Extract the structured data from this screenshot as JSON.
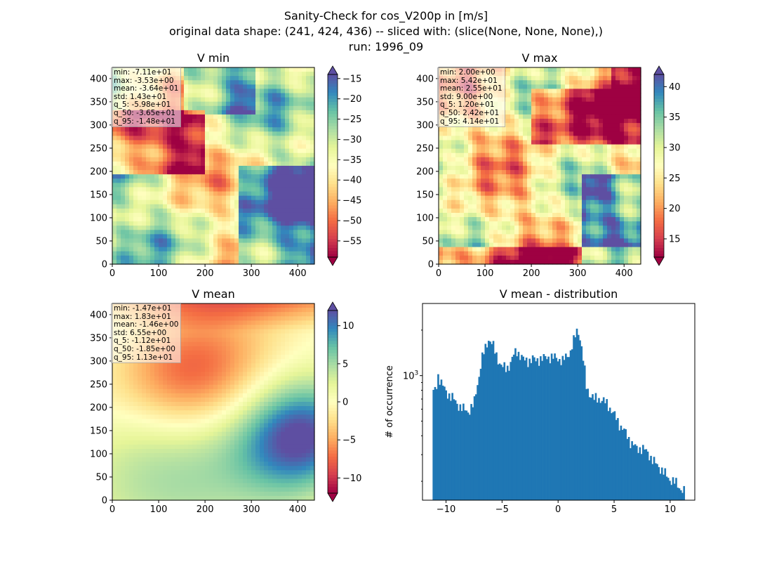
{
  "suptitle": {
    "line1": "Sanity-Check for cos_V200p in [m/s]",
    "line2": "original data shape: (241, 424, 436) -- sliced with: (slice(None, None, None),)",
    "line3": "run: 1996_09"
  },
  "chart_data": [
    {
      "type": "heatmap",
      "title": "V min",
      "colormap": "Spectral",
      "colorbar_extend": "both",
      "xlim": [
        0,
        436
      ],
      "ylim": [
        0,
        424
      ],
      "xticks": [
        "0",
        "100",
        "200",
        "300",
        "400"
      ],
      "yticks": [
        "0",
        "50",
        "100",
        "150",
        "200",
        "250",
        "300",
        "350",
        "400"
      ],
      "clim": [
        -59,
        -14
      ],
      "colorbar_ticks": [
        "−15",
        "−20",
        "−25",
        "−30",
        "−35",
        "−40",
        "−45",
        "−50",
        "−55"
      ],
      "stats": [
        "min: -7.11e+01",
        "max: -3.53e+00",
        "mean: -3.64e+01",
        "std: 1.43e+01",
        "q_5: -5.98e+01",
        "q_50: -3.65e+01",
        "q_95: -1.48e+01"
      ]
    },
    {
      "type": "heatmap",
      "title": "V max",
      "colormap": "Spectral",
      "colorbar_extend": "both",
      "xlim": [
        0,
        436
      ],
      "ylim": [
        0,
        424
      ],
      "xticks": [
        "0",
        "100",
        "200",
        "300",
        "400"
      ],
      "yticks": [
        "0",
        "50",
        "100",
        "150",
        "200",
        "250",
        "300",
        "350",
        "400"
      ],
      "clim": [
        12,
        42
      ],
      "colorbar_ticks": [
        "15",
        "20",
        "25",
        "30",
        "35",
        "40"
      ],
      "stats": [
        "min: 2.00e+00",
        "max: 5.42e+01",
        "mean: 2.55e+01",
        "std: 9.00e+00",
        "q_5: 1.20e+01",
        "q_50: 2.42e+01",
        "q_95: 4.14e+01"
      ]
    },
    {
      "type": "heatmap",
      "title": "V mean",
      "colormap": "Spectral",
      "colorbar_extend": "both",
      "xlim": [
        0,
        436
      ],
      "ylim": [
        0,
        424
      ],
      "xticks": [
        "0",
        "100",
        "200",
        "300",
        "400"
      ],
      "yticks": [
        "0",
        "50",
        "100",
        "150",
        "200",
        "250",
        "300",
        "350",
        "400"
      ],
      "clim": [
        -12,
        12
      ],
      "colorbar_ticks": [
        "10",
        "5",
        "0",
        "−5",
        "−10"
      ],
      "stats": [
        "min: -1.47e+01",
        "max: 1.83e+01",
        "mean: -1.46e+00",
        "std: 6.55e+00",
        "q_5: -1.12e+01",
        "q_50: -1.85e+00",
        "q_95: 1.13e+01"
      ]
    },
    {
      "type": "bar",
      "title": "V mean - distribution",
      "ylabel": "# of occurrence",
      "xlabel": "",
      "yscale": "log",
      "xlim": [
        -12.1,
        12.2
      ],
      "ylim": [
        150,
        3000
      ],
      "xticks": [
        "−10",
        "−5",
        "0",
        "5",
        "10"
      ],
      "yticks": [
        "10^3"
      ],
      "color": "#1f77b4",
      "bin_range": [
        -11.2,
        11.3
      ],
      "hist_profile": [
        [
          -11.2,
          760
        ],
        [
          -10.9,
          820
        ],
        [
          -10.7,
          1010
        ],
        [
          -10.4,
          880
        ],
        [
          -10.0,
          780
        ],
        [
          -9.5,
          720
        ],
        [
          -9.0,
          650
        ],
        [
          -8.5,
          600
        ],
        [
          -8.0,
          580
        ],
        [
          -7.5,
          650
        ],
        [
          -7.1,
          950
        ],
        [
          -6.8,
          1300
        ],
        [
          -6.5,
          1500
        ],
        [
          -6.2,
          1750
        ],
        [
          -5.9,
          1650
        ],
        [
          -5.6,
          1400
        ],
        [
          -5.3,
          1250
        ],
        [
          -5.0,
          1150
        ],
        [
          -4.6,
          1100
        ],
        [
          -4.3,
          1200
        ],
        [
          -4.0,
          1350
        ],
        [
          -3.7,
          1450
        ],
        [
          -3.3,
          1350
        ],
        [
          -3.0,
          1250
        ],
        [
          -2.7,
          1250
        ],
        [
          -2.3,
          1300
        ],
        [
          -2.0,
          1250
        ],
        [
          -1.6,
          1300
        ],
        [
          -1.3,
          1300
        ],
        [
          -1.0,
          1320
        ],
        [
          -0.7,
          1330
        ],
        [
          -0.3,
          1310
        ],
        [
          0.0,
          1300
        ],
        [
          0.4,
          1250
        ],
        [
          0.8,
          1350
        ],
        [
          1.1,
          1450
        ],
        [
          1.4,
          1700
        ],
        [
          1.7,
          2000
        ],
        [
          1.9,
          1900
        ],
        [
          2.1,
          1500
        ],
        [
          2.5,
          850
        ],
        [
          2.8,
          760
        ],
        [
          3.2,
          700
        ],
        [
          3.6,
          710
        ],
        [
          4.0,
          680
        ],
        [
          4.4,
          650
        ],
        [
          4.8,
          580
        ],
        [
          5.2,
          520
        ],
        [
          5.6,
          460
        ],
        [
          6.0,
          420
        ],
        [
          6.5,
          360
        ],
        [
          7.0,
          330
        ],
        [
          7.5,
          330
        ],
        [
          8.0,
          310
        ],
        [
          8.5,
          270
        ],
        [
          9.0,
          250
        ],
        [
          9.5,
          225
        ],
        [
          10.0,
          205
        ],
        [
          10.5,
          195
        ],
        [
          10.9,
          180
        ],
        [
          11.3,
          170
        ]
      ]
    }
  ]
}
